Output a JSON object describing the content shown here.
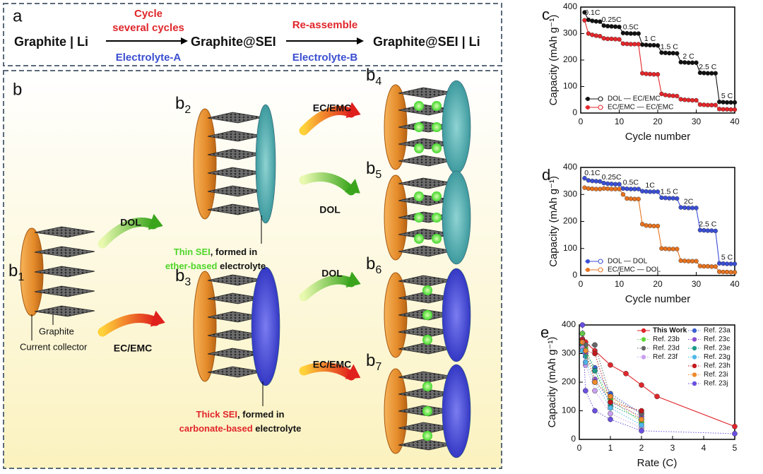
{
  "diagram": {
    "panel_a": {
      "label": "a",
      "start": "Graphite | Li",
      "step1_top": [
        "Cycle",
        "several cycles"
      ],
      "step1_bottom": "Electrolyte-A",
      "middle": "Graphite@SEI",
      "step2_top": "Re-assemble",
      "step2_bottom": "Electrolyte-B",
      "end": "Graphite@SEI | Li"
    },
    "panel_b": {
      "label": "b",
      "stage_letter": "b",
      "stages": [
        "1",
        "2",
        "3",
        "4",
        "5",
        "6",
        "7"
      ],
      "arrows": [
        "DOL",
        "EC/EMC",
        "EC/EMC",
        "DOL",
        "DOL",
        "EC/EMC"
      ],
      "graphite": "Graphite",
      "collector": "Current collector",
      "thin": [
        "Thin SEI",
        ", formed in",
        "ether-based",
        " electrolyte"
      ],
      "thick": [
        "Thick SEI",
        ", formed in",
        "carbonate-based",
        " electrolyte"
      ]
    }
  },
  "chart_data": [
    {
      "type": "line",
      "label": "c",
      "xlabel": "Cycle number",
      "ylabel": "Capacity (mAh g⁻¹)",
      "x": [
        1,
        2,
        3,
        4,
        5,
        6,
        7,
        8,
        9,
        10,
        11,
        12,
        13,
        14,
        15,
        16,
        17,
        18,
        19,
        20,
        21,
        22,
        23,
        24,
        25,
        26,
        27,
        28,
        29,
        30,
        31,
        32,
        33,
        34,
        35,
        36,
        37,
        38,
        39,
        40
      ],
      "xlim": [
        0,
        40
      ],
      "xticks": [
        0,
        10,
        20,
        30,
        40
      ],
      "ylim": [
        0,
        400
      ],
      "yticks": [
        0,
        100,
        200,
        300,
        400
      ],
      "annotations": [
        "0.1C",
        "0.25C",
        "0.5C",
        "1 C",
        "1.5 C",
        "2 C",
        "2.5 C",
        "5 C"
      ],
      "legend": "lower left",
      "series": [
        {
          "name": "DOL — EC/EMC",
          "color": "#111111",
          "values": [
            380,
            352,
            348,
            346,
            345,
            330,
            328,
            327,
            326,
            325,
            302,
            301,
            300,
            300,
            300,
            258,
            257,
            256,
            256,
            255,
            228,
            227,
            226,
            226,
            225,
            192,
            191,
            190,
            190,
            190,
            152,
            151,
            150,
            150,
            150,
            42,
            41,
            40,
            40,
            40
          ]
        },
        {
          "name": "EC/EMC — EC/EMC",
          "color": "#e5262a",
          "values": [
            350,
            300,
            295,
            292,
            290,
            282,
            280,
            280,
            279,
            278,
            262,
            261,
            260,
            260,
            260,
            150,
            148,
            147,
            146,
            146,
            72,
            68,
            66,
            65,
            64,
            52,
            50,
            49,
            48,
            48,
            32,
            31,
            30,
            30,
            30,
            15,
            14,
            14,
            13,
            13
          ]
        }
      ]
    },
    {
      "type": "line",
      "label": "d",
      "xlabel": "Cycle number",
      "ylabel": "Capacity (mAh g⁻¹)",
      "x": [
        1,
        2,
        3,
        4,
        5,
        6,
        7,
        8,
        9,
        10,
        11,
        12,
        13,
        14,
        15,
        16,
        17,
        18,
        19,
        20,
        21,
        22,
        23,
        24,
        25,
        26,
        27,
        28,
        29,
        30,
        31,
        32,
        33,
        34,
        35,
        36,
        37,
        38,
        39,
        40
      ],
      "xlim": [
        0,
        40
      ],
      "xticks": [
        0,
        10,
        20,
        30,
        40
      ],
      "ylim": [
        0,
        400
      ],
      "yticks": [
        0,
        100,
        200,
        300,
        400
      ],
      "annotations": [
        "0.1C",
        "0.25C",
        "0.5C",
        "1C",
        "1.5 C",
        "2C",
        "2.5 C",
        "5 C"
      ],
      "legend": "lower left",
      "series": [
        {
          "name": "DOL — DOL",
          "color": "#3a4fd6",
          "values": [
            360,
            352,
            350,
            349,
            348,
            342,
            340,
            339,
            338,
            338,
            322,
            321,
            320,
            320,
            320,
            312,
            311,
            310,
            310,
            310,
            288,
            287,
            286,
            286,
            285,
            252,
            251,
            250,
            250,
            250,
            168,
            167,
            166,
            166,
            165,
            45,
            44,
            43,
            43,
            43
          ]
        },
        {
          "name": "EC/EMC — DOL",
          "color": "#e8731f",
          "values": [
            325,
            322,
            321,
            320,
            320,
            322,
            321,
            320,
            320,
            320,
            300,
            285,
            284,
            283,
            283,
            190,
            185,
            184,
            183,
            183,
            100,
            99,
            98,
            98,
            98,
            55,
            54,
            53,
            53,
            53,
            35,
            34,
            34,
            33,
            33,
            14,
            13,
            13,
            12,
            12
          ]
        }
      ]
    },
    {
      "type": "scatter-line",
      "label": "e",
      "xlabel": "Rate (C)",
      "ylabel": "Capacity (mAh g⁻¹)",
      "xlim": [
        0,
        5
      ],
      "xticks": [
        0,
        1,
        2,
        3,
        4,
        5
      ],
      "ylim": [
        0,
        400
      ],
      "yticks": [
        0,
        100,
        200,
        300,
        400
      ],
      "legend": "upper right",
      "series": [
        {
          "name": "This Work",
          "color": "#e0262b",
          "style": "solid",
          "emphasis": true,
          "x": [
            0.1,
            0.2,
            0.5,
            1,
            1.5,
            2,
            2.5,
            5
          ],
          "values": [
            370,
            340,
            310,
            260,
            230,
            190,
            150,
            45
          ]
        },
        {
          "name": "Ref. 23a",
          "color": "#3a5fd0",
          "style": "dotted",
          "x": [
            0.1,
            0.2,
            0.5,
            1,
            2
          ],
          "values": [
            330,
            300,
            250,
            160,
            90
          ]
        },
        {
          "name": "Ref. 23b",
          "color": "#5fd63a",
          "style": "dotted",
          "x": [
            0.1,
            0.2,
            0.5,
            1,
            2
          ],
          "values": [
            370,
            320,
            240,
            140,
            60
          ]
        },
        {
          "name": "Ref. 23c",
          "color": "#8a4fd0",
          "style": "dotted",
          "x": [
            0.1,
            0.2,
            0.5,
            1,
            2
          ],
          "values": [
            340,
            300,
            210,
            130,
            80
          ]
        },
        {
          "name": "Ref. 23d",
          "color": "#666666",
          "style": "dotted",
          "x": [
            0.1,
            0.2,
            0.5,
            1,
            2
          ],
          "values": [
            350,
            330,
            330,
            150,
            90
          ]
        },
        {
          "name": "Ref. 23e",
          "color": "#1f9a8a",
          "style": "dotted",
          "x": [
            0.1,
            0.2,
            0.5,
            1,
            2
          ],
          "values": [
            330,
            290,
            240,
            120,
            70
          ]
        },
        {
          "name": "Ref. 23f",
          "color": "#c9a0ef",
          "style": "dotted",
          "x": [
            0.1,
            0.2,
            0.5,
            1,
            2
          ],
          "values": [
            320,
            260,
            170,
            90,
            40
          ]
        },
        {
          "name": "Ref. 23g",
          "color": "#4fb8e8",
          "style": "dotted",
          "x": [
            0.1,
            0.2,
            0.5,
            1,
            2
          ],
          "values": [
            310,
            270,
            200,
            110,
            50
          ]
        },
        {
          "name": "Ref. 23h",
          "color": "#c0191e",
          "style": "dotted",
          "x": [
            0.1,
            0.2,
            0.5,
            1,
            2
          ],
          "values": [
            350,
            310,
            300,
            130,
            100
          ]
        },
        {
          "name": "Ref. 23i",
          "color": "#ef8a2a",
          "style": "dotted",
          "x": [
            0.1,
            0.2,
            0.5,
            1,
            2
          ],
          "values": [
            340,
            310,
            200,
            150,
            70
          ]
        },
        {
          "name": "Ref. 23j",
          "color": "#6a4fe0",
          "style": "dotted",
          "x": [
            0.1,
            0.2,
            0.5,
            1,
            2,
            5
          ],
          "values": [
            400,
            170,
            100,
            70,
            30,
            20
          ]
        }
      ]
    }
  ]
}
